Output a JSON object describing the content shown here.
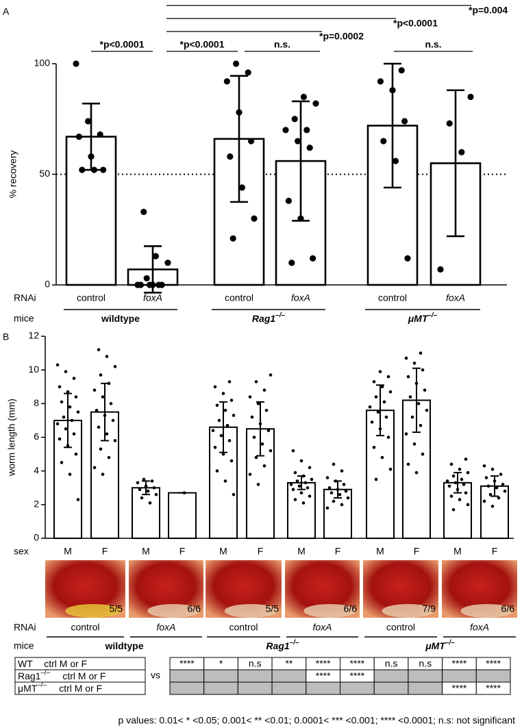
{
  "chart_data": [
    {
      "type": "bar",
      "panel_label": "A",
      "ylabel": "% recovery",
      "ylim": [
        0,
        100
      ],
      "yticks": [
        0,
        50,
        100
      ],
      "reference_line": 50,
      "color": "#ffffff",
      "edge_color": "#000000",
      "row_labels": [
        "RNAi",
        "mice"
      ],
      "categories": [
        "control",
        "foxA",
        "control",
        "foxA",
        "control",
        "foxA"
      ],
      "groups": [
        {
          "text": "wildtype"
        },
        {
          "text": "Rag1",
          "superscript": "–/–"
        },
        {
          "text": "μMT",
          "superscript": "–/–"
        }
      ],
      "values": [
        67,
        7,
        66,
        56,
        72,
        55
      ],
      "errors": [
        15,
        10.5,
        28.5,
        27,
        28,
        33
      ],
      "points": [
        [
          100,
          74,
          68,
          67,
          58,
          52,
          52,
          52
        ],
        [
          33,
          13,
          10,
          3,
          0,
          0,
          0,
          0,
          0,
          0
        ],
        [
          100,
          96,
          92,
          78,
          65,
          58,
          44,
          30,
          21
        ],
        [
          85,
          82,
          75,
          70,
          70,
          65,
          62,
          38,
          30,
          12,
          10
        ],
        [
          97,
          92,
          88,
          74,
          65,
          56,
          12
        ],
        [
          85,
          73,
          60,
          7
        ]
      ],
      "annotations": [
        "*p<0.0001",
        "*p<0.0001",
        "n.s.",
        "n.s.",
        "*p=0.0002",
        "*p<0.0001",
        "*p=0.004"
      ]
    },
    {
      "type": "bar",
      "panel_label": "B",
      "ylabel": "worm length (mm)",
      "ylim": [
        0,
        12
      ],
      "yticks": [
        0,
        2,
        4,
        6,
        8,
        10,
        12
      ],
      "color": "#ffffff",
      "edge_color": "#000000",
      "row_labels": [
        "sex",
        "RNAi",
        "mice"
      ],
      "categories": [
        "M",
        "F",
        "M",
        "F",
        "M",
        "F",
        "M",
        "F",
        "M",
        "F",
        "M",
        "F"
      ],
      "image_captions": [
        "5/5",
        "6/6",
        "5/5",
        "6/6",
        "7/9",
        "6/6"
      ],
      "rnai": [
        "control",
        "foxA",
        "control",
        "foxA",
        "control",
        "foxA"
      ],
      "groups": [
        {
          "text": "wildtype"
        },
        {
          "text": "Rag1",
          "superscript": "–/–"
        },
        {
          "text": "μMT",
          "superscript": "–/–"
        }
      ],
      "values": [
        7.0,
        7.5,
        3.0,
        2.7,
        6.6,
        6.5,
        3.3,
        2.9,
        7.6,
        8.2,
        3.3,
        3.1
      ],
      "errors": [
        1.6,
        1.7,
        0.4,
        0,
        1.5,
        1.6,
        0.4,
        0.5,
        1.5,
        1.9,
        0.6,
        0.6
      ],
      "points": [
        [
          10.3,
          9.9,
          9.5,
          9.0,
          8.7,
          8.4,
          8.1,
          7.8,
          7.5,
          7.2,
          7.0,
          6.8,
          6.5,
          6.2,
          5.9,
          5.5,
          5.0,
          4.5,
          3.8,
          2.3
        ],
        [
          11.2,
          10.8,
          10.2,
          9.7,
          9.2,
          8.8,
          8.4,
          8.0,
          7.6,
          7.3,
          7.0,
          6.6,
          6.2,
          5.8,
          5.3,
          4.8,
          4.2,
          3.8
        ],
        [
          3.5,
          3.4,
          3.3,
          3.1,
          3.0,
          2.9,
          2.8,
          2.6,
          2.4,
          2.1
        ],
        [
          2.7
        ],
        [
          9.3,
          9.0,
          8.6,
          8.2,
          7.9,
          7.6,
          7.3,
          7.0,
          6.7,
          6.4,
          6.1,
          5.8,
          5.4,
          5.0,
          4.6,
          4.0,
          3.4,
          2.6
        ],
        [
          9.7,
          9.3,
          8.8,
          8.4,
          8.0,
          7.6,
          7.2,
          6.8,
          6.4,
          6.0,
          5.6,
          5.2,
          4.8,
          4.3,
          3.8,
          3.2
        ],
        [
          5.2,
          4.6,
          4.2,
          3.9,
          3.7,
          3.5,
          3.4,
          3.3,
          3.2,
          3.1,
          3.0,
          2.9,
          2.7,
          2.5,
          2.3,
          2.1
        ],
        [
          4.4,
          4.0,
          3.6,
          3.4,
          3.2,
          3.0,
          2.9,
          2.8,
          2.7,
          2.6,
          2.4,
          2.2,
          2.0,
          1.8
        ],
        [
          9.9,
          9.6,
          9.3,
          9.0,
          8.7,
          8.4,
          8.1,
          7.8,
          7.5,
          7.2,
          6.9,
          6.5,
          6.0,
          5.4,
          4.8,
          4.1,
          3.5
        ],
        [
          11.0,
          10.7,
          10.4,
          10.0,
          9.6,
          9.2,
          8.8,
          8.4,
          8.0,
          7.6,
          7.2,
          6.7,
          6.2,
          5.6,
          5.0,
          4.4,
          3.9
        ],
        [
          4.7,
          4.4,
          4.1,
          3.9,
          3.7,
          3.5,
          3.4,
          3.3,
          3.2,
          3.1,
          2.9,
          2.7,
          2.5,
          2.3,
          2.0,
          1.7
        ],
        [
          4.3,
          4.1,
          3.8,
          3.6,
          3.4,
          3.2,
          3.1,
          3.0,
          2.8,
          2.6,
          2.4,
          2.2,
          1.9
        ]
      ]
    }
  ],
  "table": {
    "row_labels": [
      {
        "text": "WT",
        "suffix": "ctrl M or F"
      },
      {
        "text": "Rag1",
        "superscript": "–/–",
        "suffix": "ctrl M or F"
      },
      {
        "text": "μMT",
        "superscript": "–/–",
        "suffix": "ctrl M or F"
      }
    ],
    "vs": "vs",
    "rows": [
      [
        "****",
        "*",
        "n.s",
        "**",
        "****",
        "****",
        "n.s",
        "n.s",
        "****",
        "****"
      ],
      [
        null,
        null,
        null,
        null,
        "****",
        "****",
        null,
        null,
        null,
        null
      ],
      [
        null,
        null,
        null,
        null,
        null,
        null,
        null,
        null,
        "****",
        "****"
      ]
    ],
    "footnote": "p values: 0.01< * <0.05; 0.001< ** <0.01; 0.0001< *** <0.001; **** <0.0001; n.s: not significant"
  }
}
